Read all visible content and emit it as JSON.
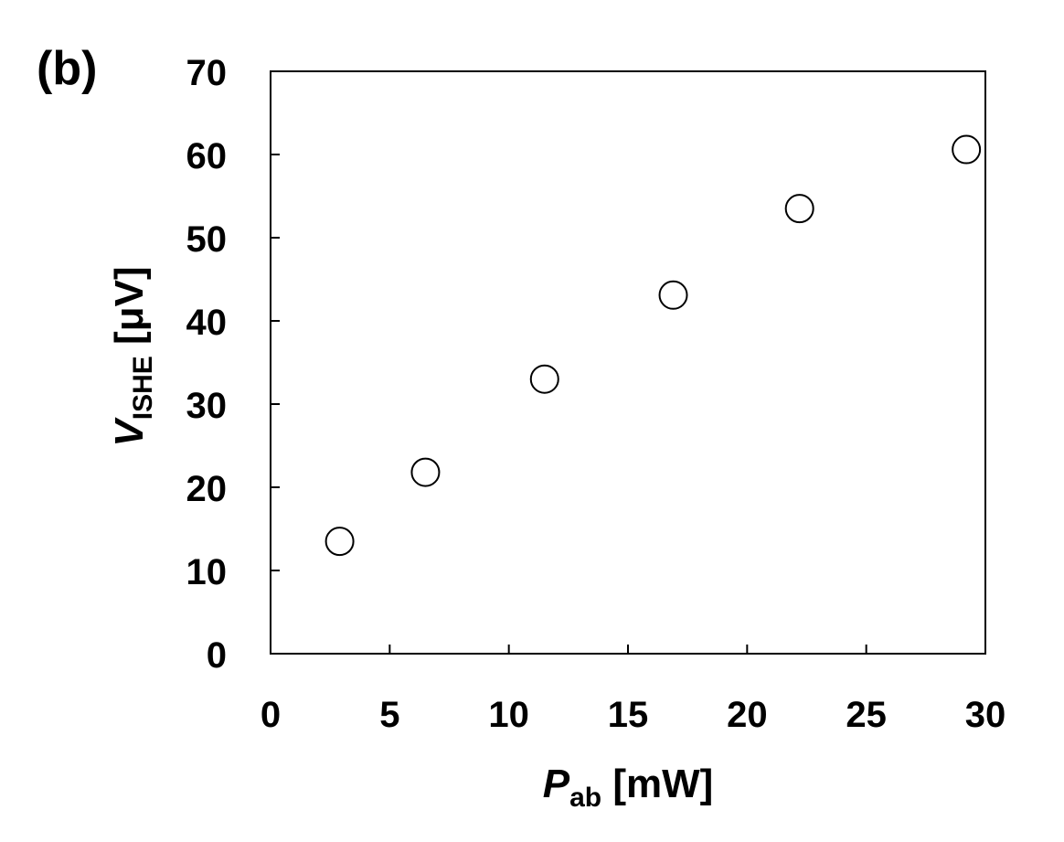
{
  "panel_label": "(b)",
  "chart_data": {
    "type": "scatter",
    "x": [
      2.9,
      6.5,
      11.5,
      16.9,
      22.2,
      29.2
    ],
    "y": [
      13.5,
      21.8,
      33.0,
      43.1,
      53.5,
      60.6
    ],
    "xlabel": {
      "main": "P",
      "sub": "ab",
      "unit": " [mW]"
    },
    "ylabel": {
      "main": "V",
      "sub": "ISHE",
      "unit": " [μV]"
    },
    "xlim": [
      0,
      30
    ],
    "ylim": [
      0,
      70
    ],
    "xticks": [
      0,
      5,
      10,
      15,
      20,
      25,
      30
    ],
    "yticks": [
      0,
      10,
      20,
      30,
      40,
      50,
      60,
      70
    ],
    "marker": "open-circle",
    "grid": false,
    "legend": "none",
    "colors": {
      "marker_stroke": "#000000",
      "marker_fill": "#ffffff",
      "axis": "#000000"
    }
  }
}
